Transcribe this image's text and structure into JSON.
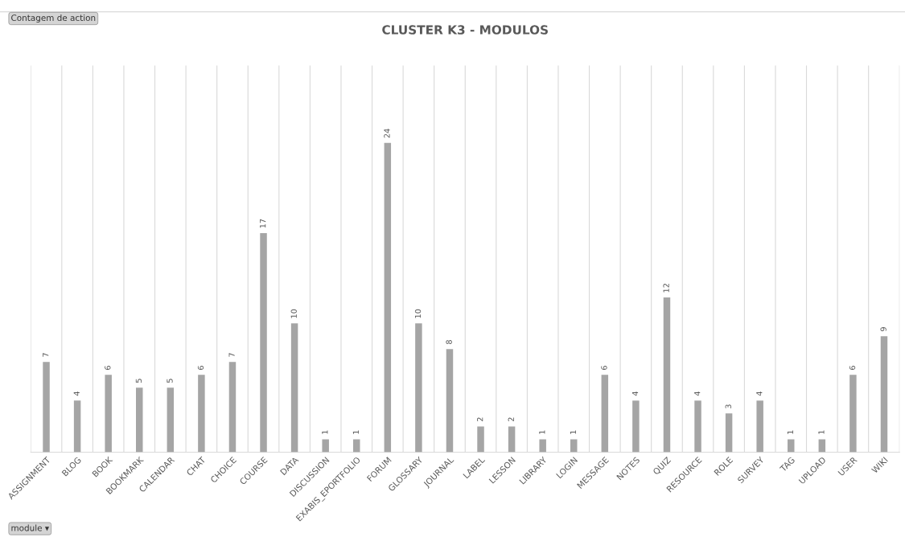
{
  "chart_data": {
    "type": "bar",
    "title": "CLUSTER K3 - MODULOS",
    "categories": [
      "ASSIGNMENT",
      "BLOG",
      "BOOK",
      "BOOKMARK",
      "CALENDAR",
      "CHAT",
      "CHOICE",
      "COURSE",
      "DATA",
      "DISCUSSION",
      "EXABIS_EPORTFOLIO",
      "FORUM",
      "GLOSSARY",
      "JOURNAL",
      "LABEL",
      "LESSON",
      "LIBRARY",
      "LOGIN",
      "MESSAGE",
      "NOTES",
      "QUIZ",
      "RESOURCE",
      "ROLE",
      "SURVEY",
      "TAG",
      "UPLOAD",
      "USER",
      "WIKI"
    ],
    "values": [
      7,
      4,
      6,
      5,
      5,
      6,
      7,
      17,
      10,
      1,
      1,
      24,
      10,
      8,
      2,
      2,
      1,
      1,
      6,
      4,
      12,
      4,
      3,
      4,
      1,
      1,
      6,
      9
    ],
    "color": "#a5a5a5",
    "data_labels": true,
    "ylim": [
      0,
      30
    ],
    "tick_labels": "x",
    "grid": "x",
    "legend": false,
    "annotations": [
      "Contagem de action",
      "module ▾"
    ]
  }
}
